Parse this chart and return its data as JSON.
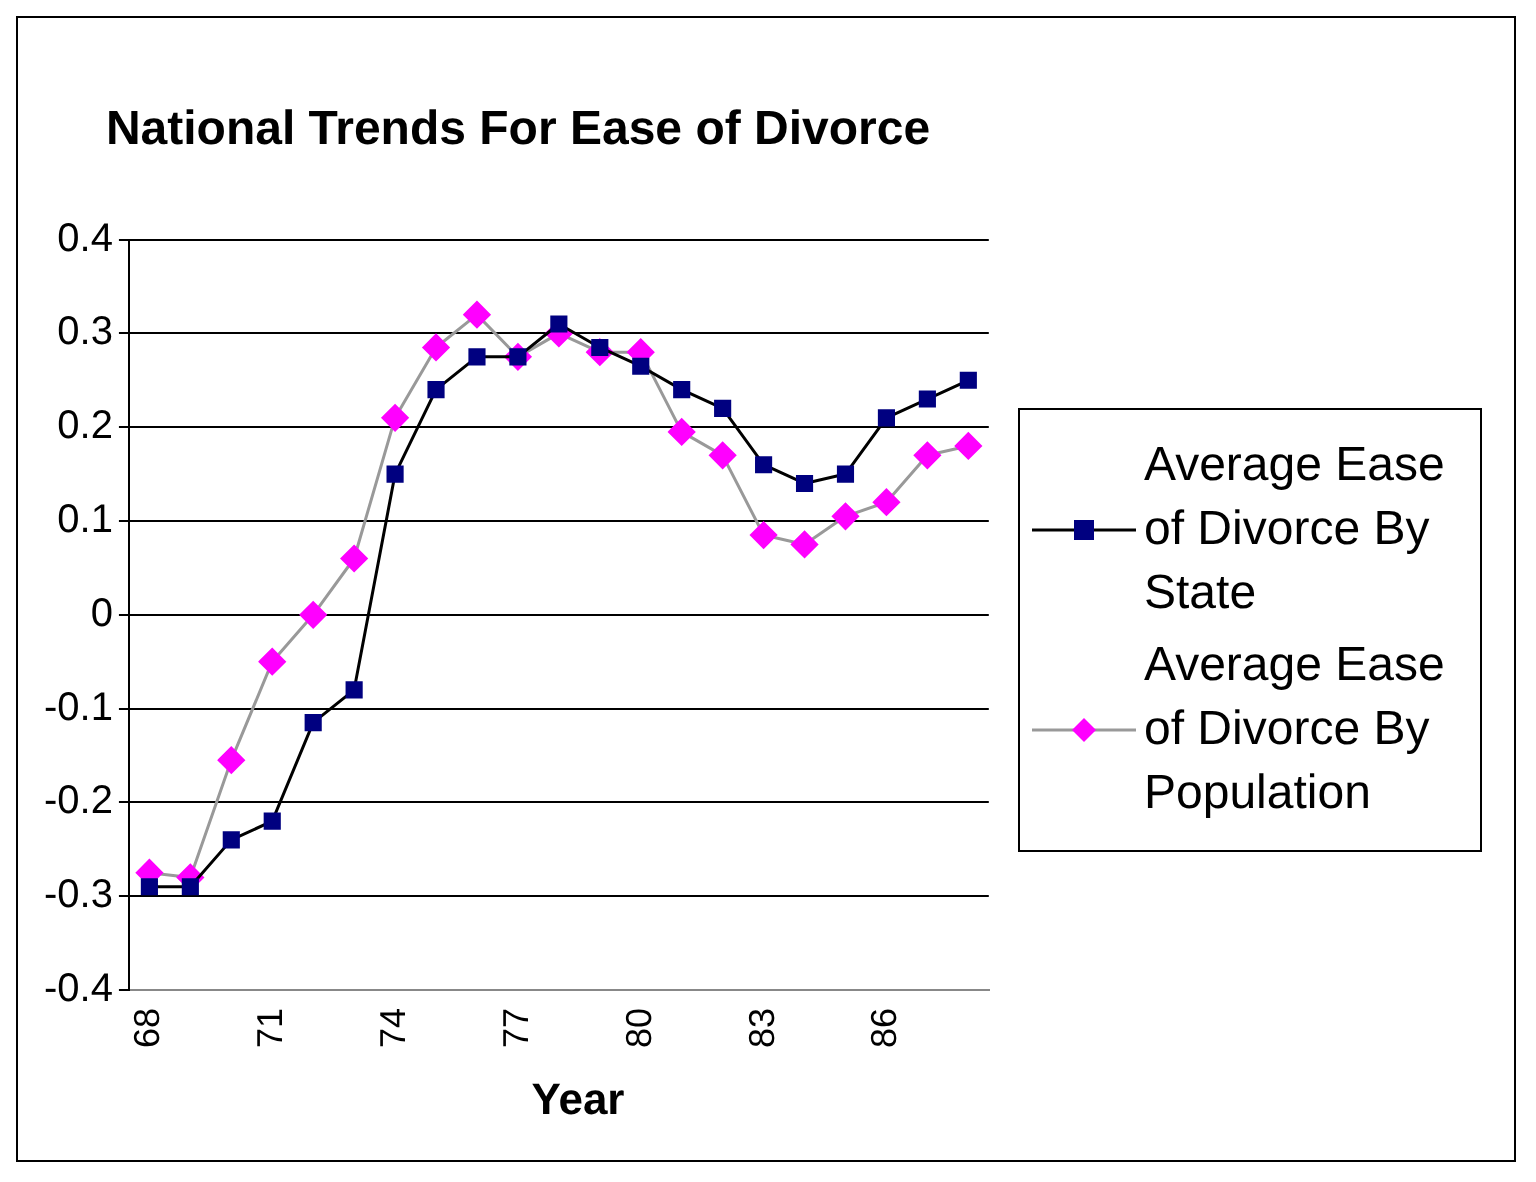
{
  "chart_data": {
    "type": "line",
    "title": "National Trends For Ease of Divorce",
    "xlabel": "Year",
    "categories": [
      "68",
      null,
      null,
      "71",
      null,
      null,
      "74",
      null,
      null,
      "77",
      null,
      null,
      "80",
      null,
      null,
      "83",
      null,
      null,
      "86",
      null,
      null
    ],
    "series": [
      {
        "name": "Average Ease of Divorce By State",
        "color": "#000080",
        "marker": "square",
        "values": [
          -0.29,
          -0.29,
          -0.24,
          -0.22,
          -0.115,
          -0.08,
          0.15,
          0.24,
          0.275,
          0.275,
          0.31,
          0.285,
          0.265,
          0.24,
          0.22,
          0.16,
          0.14,
          0.15,
          0.21,
          0.23,
          0.25
        ]
      },
      {
        "name": "Average Ease of Divorce By Population",
        "color": "#ff00ff",
        "marker": "diamond",
        "values": [
          -0.275,
          -0.28,
          -0.155,
          -0.05,
          0.0,
          0.06,
          0.21,
          0.285,
          0.32,
          0.275,
          0.3,
          0.28,
          0.28,
          0.195,
          0.17,
          0.085,
          0.075,
          0.105,
          0.12,
          0.17,
          0.18
        ]
      }
    ],
    "ylim": [
      -0.4,
      0.4
    ],
    "yticks": [
      -0.4,
      -0.3,
      -0.2,
      -0.1,
      0,
      0.1,
      0.2,
      0.3,
      0.4
    ],
    "grid": "y",
    "legend": "right"
  }
}
